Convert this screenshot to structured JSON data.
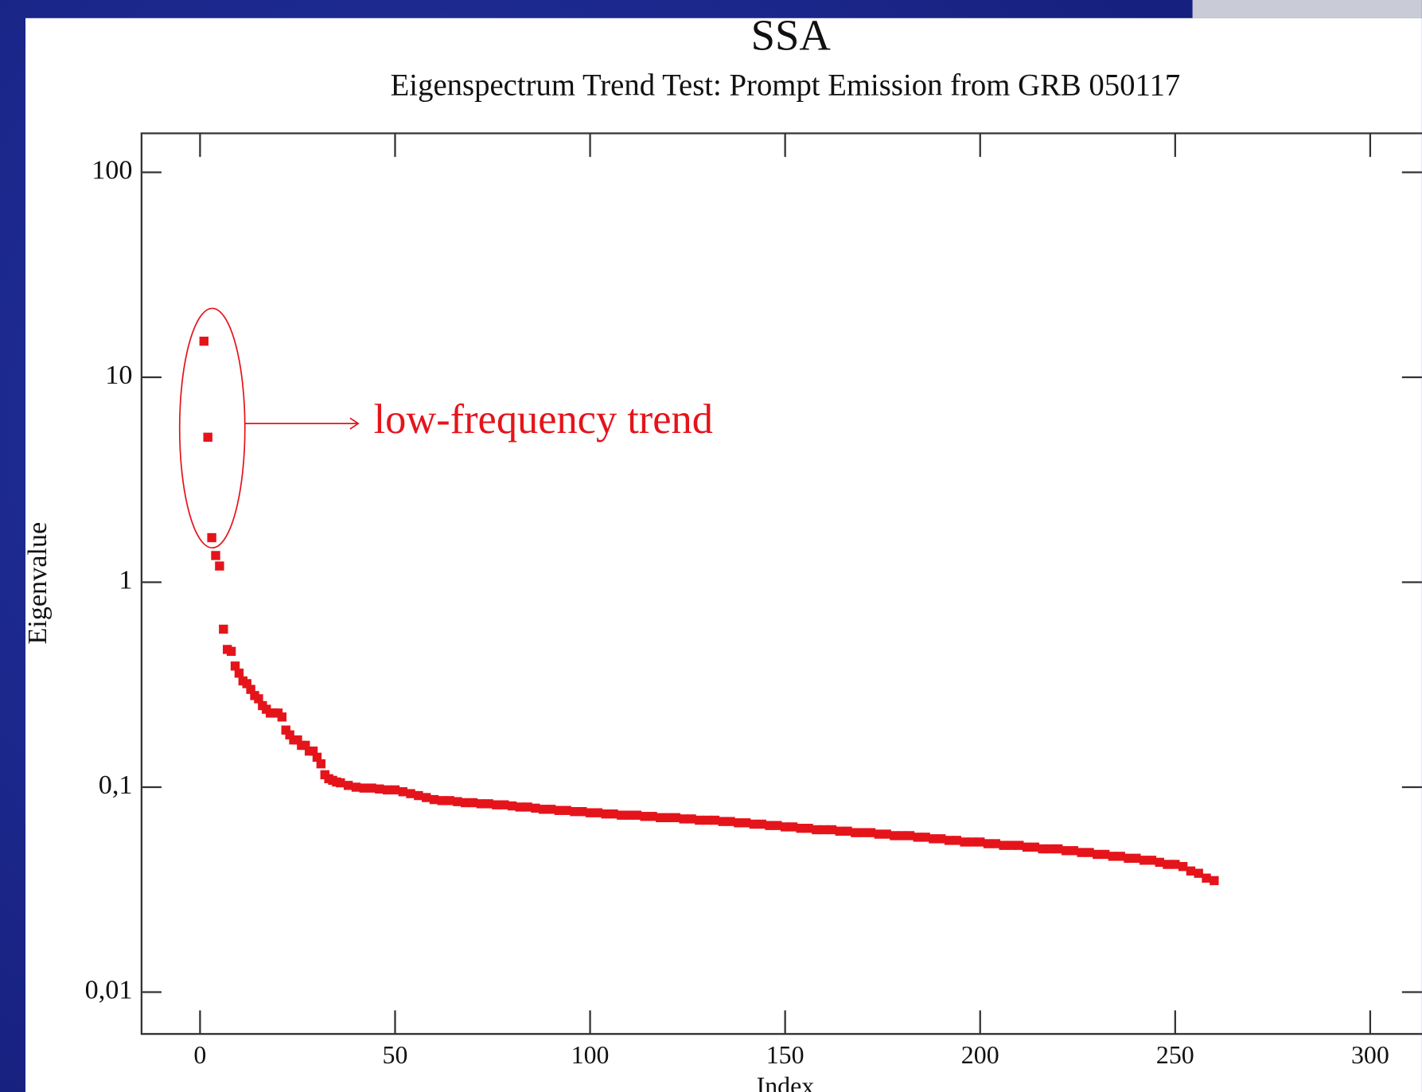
{
  "chart_data": {
    "type": "scatter",
    "title": "SSA",
    "subtitle": "Eigenspectrum Trend Test: Prompt Emission from GRB 050117",
    "x_label": "Index",
    "y_label": "Eigenvalue",
    "annotation": "low-frequency trend",
    "log_y": true,
    "color": "#e5141b",
    "xlim": [
      -15,
      320
    ],
    "ylim": [
      0.00625,
      155
    ],
    "xticks": [
      0,
      50,
      100,
      150,
      200,
      250,
      300
    ],
    "yticks": [
      {
        "value": 0.01,
        "label": "0,01"
      },
      {
        "value": 0.1,
        "label": "0,1"
      },
      1,
      10,
      100
    ],
    "x": [
      1,
      2,
      3,
      4,
      5,
      6,
      7,
      8,
      9,
      10,
      11,
      12,
      13,
      14,
      15,
      16,
      17,
      18,
      19,
      20,
      21,
      22,
      23,
      24,
      25,
      26,
      27,
      28,
      29,
      30,
      31,
      32,
      33,
      34,
      35,
      36,
      38,
      40,
      42,
      44,
      46,
      48,
      50,
      52,
      54,
      56,
      58,
      60,
      62,
      64,
      66,
      68,
      70,
      72,
      74,
      76,
      78,
      80,
      82,
      84,
      86,
      88,
      90,
      92,
      94,
      96,
      98,
      100,
      102,
      104,
      106,
      108,
      110,
      112,
      114,
      116,
      118,
      120,
      122,
      124,
      126,
      128,
      130,
      132,
      134,
      136,
      138,
      140,
      142,
      144,
      146,
      148,
      150,
      152,
      154,
      156,
      158,
      160,
      162,
      164,
      166,
      168,
      170,
      172,
      174,
      176,
      178,
      180,
      182,
      184,
      186,
      188,
      190,
      192,
      194,
      196,
      198,
      200,
      202,
      204,
      206,
      208,
      210,
      212,
      214,
      216,
      218,
      220,
      222,
      224,
      226,
      228,
      230,
      232,
      234,
      236,
      238,
      240,
      242,
      244,
      246,
      248,
      250,
      252,
      254,
      256,
      258,
      260
    ],
    "values": [
      15,
      5.1,
      1.65,
      1.35,
      1.2,
      0.59,
      0.47,
      0.46,
      0.39,
      0.36,
      0.33,
      0.32,
      0.3,
      0.28,
      0.27,
      0.25,
      0.24,
      0.23,
      0.23,
      0.23,
      0.22,
      0.19,
      0.18,
      0.17,
      0.17,
      0.16,
      0.16,
      0.15,
      0.15,
      0.14,
      0.13,
      0.115,
      0.11,
      0.108,
      0.106,
      0.105,
      0.102,
      0.1,
      0.099,
      0.099,
      0.098,
      0.097,
      0.097,
      0.095,
      0.093,
      0.091,
      0.089,
      0.087,
      0.086,
      0.086,
      0.085,
      0.084,
      0.084,
      0.083,
      0.083,
      0.082,
      0.082,
      0.081,
      0.08,
      0.08,
      0.079,
      0.078,
      0.078,
      0.077,
      0.077,
      0.076,
      0.076,
      0.075,
      0.075,
      0.074,
      0.074,
      0.073,
      0.073,
      0.073,
      0.072,
      0.072,
      0.071,
      0.071,
      0.071,
      0.07,
      0.07,
      0.069,
      0.069,
      0.069,
      0.068,
      0.068,
      0.067,
      0.067,
      0.066,
      0.066,
      0.065,
      0.065,
      0.064,
      0.064,
      0.063,
      0.063,
      0.062,
      0.062,
      0.062,
      0.061,
      0.061,
      0.06,
      0.06,
      0.06,
      0.059,
      0.059,
      0.058,
      0.058,
      0.058,
      0.057,
      0.057,
      0.056,
      0.056,
      0.055,
      0.055,
      0.054,
      0.054,
      0.054,
      0.053,
      0.053,
      0.052,
      0.052,
      0.052,
      0.051,
      0.051,
      0.05,
      0.05,
      0.05,
      0.049,
      0.049,
      0.048,
      0.048,
      0.047,
      0.047,
      0.046,
      0.046,
      0.045,
      0.045,
      0.044,
      0.044,
      0.043,
      0.042,
      0.042,
      0.041,
      0.039,
      0.038,
      0.036,
      0.035
    ]
  }
}
